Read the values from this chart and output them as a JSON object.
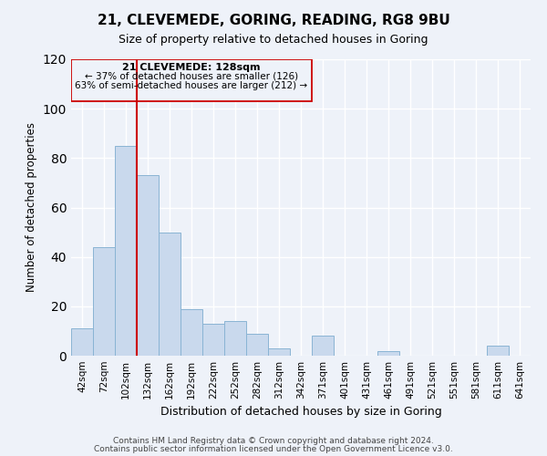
{
  "title": "21, CLEVEMEDE, GORING, READING, RG8 9BU",
  "subtitle": "Size of property relative to detached houses in Goring",
  "xlabel": "Distribution of detached houses by size in Goring",
  "ylabel": "Number of detached properties",
  "bar_color": "#c9d9ed",
  "bar_edge_color": "#8ab4d4",
  "background_color": "#eef2f9",
  "grid_color": "#ffffff",
  "annotation_box_color": "#cc0000",
  "vline_color": "#cc0000",
  "categories": [
    "42sqm",
    "72sqm",
    "102sqm",
    "132sqm",
    "162sqm",
    "192sqm",
    "222sqm",
    "252sqm",
    "282sqm",
    "312sqm",
    "342sqm",
    "371sqm",
    "401sqm",
    "431sqm",
    "461sqm",
    "491sqm",
    "521sqm",
    "551sqm",
    "581sqm",
    "611sqm",
    "641sqm"
  ],
  "values": [
    11,
    44,
    85,
    73,
    50,
    19,
    13,
    14,
    9,
    3,
    0,
    8,
    0,
    0,
    2,
    0,
    0,
    0,
    0,
    4,
    0
  ],
  "ylim": [
    0,
    120
  ],
  "yticks": [
    0,
    20,
    40,
    60,
    80,
    100,
    120
  ],
  "vline_bar_index": 3,
  "annotation_title": "21 CLEVEMEDE: 128sqm",
  "annotation_line1": "← 37% of detached houses are smaller (126)",
  "annotation_line2": "63% of semi-detached houses are larger (212) →",
  "footer1": "Contains HM Land Registry data © Crown copyright and database right 2024.",
  "footer2": "Contains public sector information licensed under the Open Government Licence v3.0."
}
